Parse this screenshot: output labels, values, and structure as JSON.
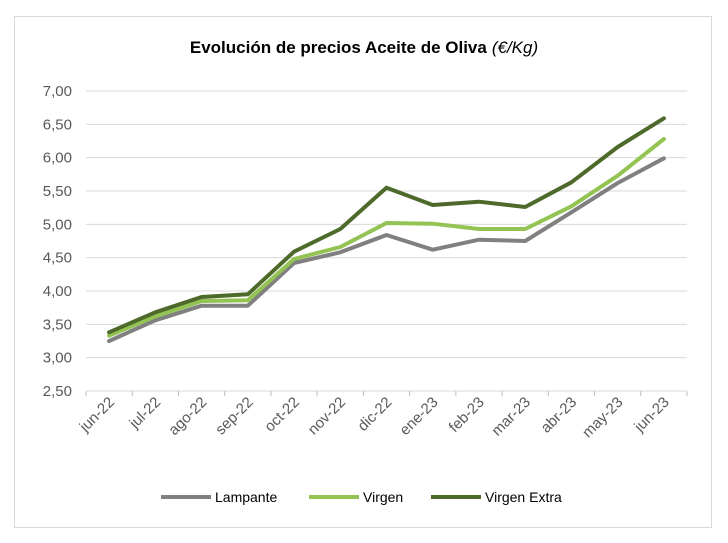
{
  "chart_data": {
    "type": "line",
    "title": "Evolución de precios Aceite de Oliva",
    "title_unit": "(€/Kg)",
    "categories": [
      "jun-22",
      "jul-22",
      "ago-22",
      "sep-22",
      "oct-22",
      "nov-22",
      "dic-22",
      "ene-23",
      "feb-23",
      "mar-23",
      "abr-23",
      "may-23",
      "jun-23"
    ],
    "ylim": [
      2.5,
      7.0
    ],
    "yticks": [
      2.5,
      3.0,
      3.5,
      4.0,
      4.5,
      5.0,
      5.5,
      6.0,
      6.5,
      7.0
    ],
    "ytick_labels": [
      "2,50",
      "3,00",
      "3,50",
      "4,00",
      "4,50",
      "5,00",
      "5,50",
      "6,00",
      "6,50",
      "7,00"
    ],
    "grid": true,
    "legend_position": "bottom",
    "series": [
      {
        "name": "Lampante",
        "color": "#808080",
        "values": [
          3.25,
          3.56,
          3.78,
          3.78,
          4.42,
          4.58,
          4.84,
          4.62,
          4.77,
          4.75,
          5.18,
          5.62,
          5.99
        ]
      },
      {
        "name": "Virgen",
        "color": "#92c353",
        "values": [
          3.33,
          3.62,
          3.85,
          3.86,
          4.48,
          4.66,
          5.02,
          5.01,
          4.93,
          4.93,
          5.27,
          5.73,
          6.28
        ]
      },
      {
        "name": "Virgen Extra",
        "color": "#4e6a2a",
        "values": [
          3.38,
          3.68,
          3.91,
          3.95,
          4.59,
          4.93,
          5.55,
          5.29,
          5.34,
          5.26,
          5.63,
          6.16,
          6.59
        ]
      }
    ]
  }
}
